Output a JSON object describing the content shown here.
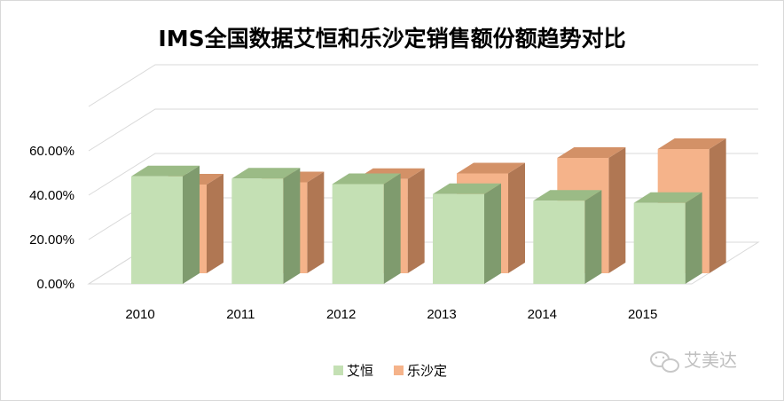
{
  "chart_data": {
    "type": "bar",
    "title": "IMS全国数据艾恒和乐沙定销售额份额趋势对比",
    "categories": [
      "2010",
      "2011",
      "2012",
      "2013",
      "2014",
      "2015"
    ],
    "series": [
      {
        "name": "艾恒",
        "values": [
          48.5,
          47.5,
          45.0,
          40.5,
          37.5,
          36.5
        ],
        "color": "#c4e0b4",
        "side_color": "#7f9b6e",
        "top_color": "#9bbb86"
      },
      {
        "name": "乐沙定",
        "values": [
          40.0,
          41.0,
          42.5,
          45.0,
          52.0,
          56.0
        ],
        "color": "#f5b38a",
        "side_color": "#b07753",
        "top_color": "#d39167"
      }
    ],
    "yticks": [
      "0.00%",
      "20.00%",
      "40.00%",
      "60.00%"
    ],
    "ylim": [
      0,
      60
    ],
    "grid": true,
    "legend_position": "bottom"
  },
  "watermark": {
    "text": "艾美达",
    "icon": "wechat-icon"
  }
}
